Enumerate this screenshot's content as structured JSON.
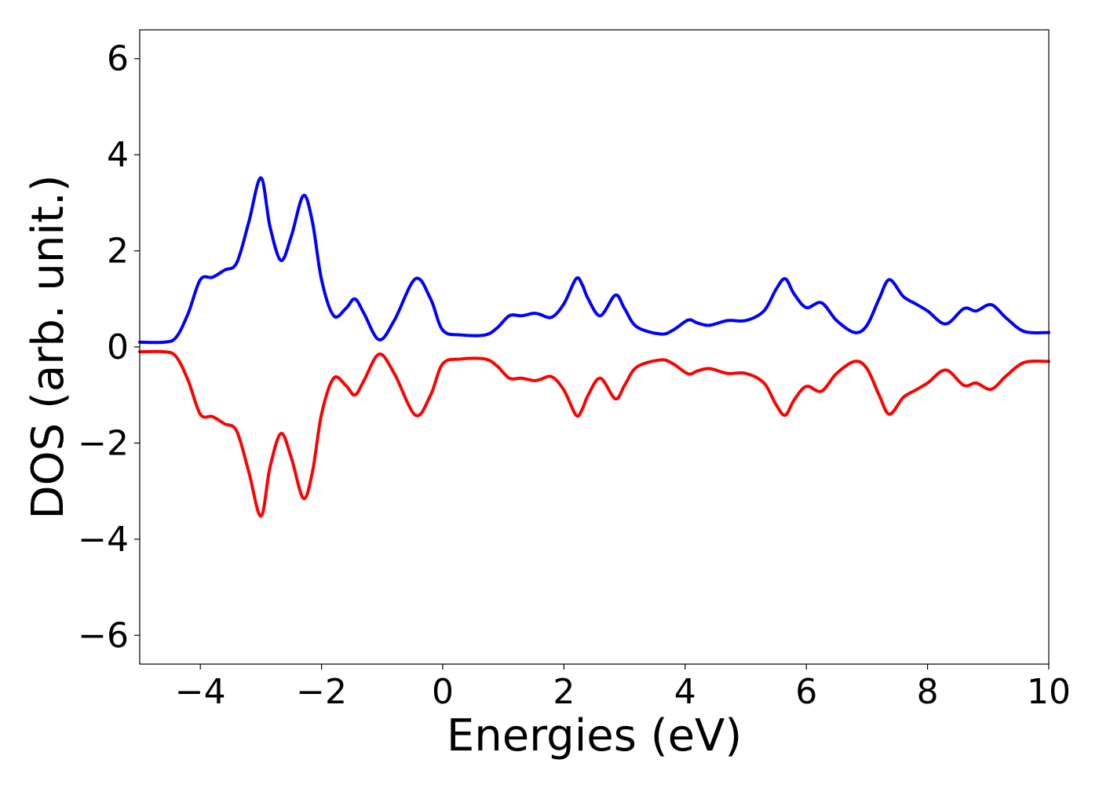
{
  "chart_data": {
    "type": "line",
    "title": "",
    "xlabel": "Energies (eV)",
    "ylabel": "DOS (arb. unit.)",
    "xlim": [
      -5,
      10
    ],
    "ylim": [
      -6.6,
      6.6
    ],
    "xticks": [
      -4,
      -2,
      0,
      2,
      4,
      6,
      8,
      10
    ],
    "yticks": [
      -6,
      -4,
      -2,
      0,
      2,
      4,
      6
    ],
    "xtick_labels": [
      "−4",
      "−2",
      "0",
      "2",
      "4",
      "6",
      "8",
      "10"
    ],
    "ytick_labels": [
      "−6",
      "−4",
      "−2",
      "0",
      "2",
      "4",
      "6"
    ],
    "grid": false,
    "legend": false,
    "series": [
      {
        "color": "#0000ff",
        "x": [
          -5.0,
          -4.6,
          -4.4,
          -4.2,
          -4.0,
          -3.8,
          -3.6,
          -3.4,
          -3.2,
          -3.0,
          -2.85,
          -2.67,
          -2.5,
          -2.3,
          -2.15,
          -2.0,
          -1.8,
          -1.6,
          -1.45,
          -1.3,
          -1.05,
          -0.8,
          -0.45,
          -0.2,
          0.0,
          0.3,
          0.7,
          0.9,
          1.1,
          1.3,
          1.5,
          1.6,
          1.8,
          2.0,
          2.2,
          2.3,
          2.4,
          2.6,
          2.85,
          3.0,
          3.2,
          3.6,
          3.8,
          4.05,
          4.2,
          4.4,
          4.7,
          5.0,
          5.3,
          5.5,
          5.65,
          5.8,
          6.0,
          6.25,
          6.5,
          6.8,
          7.0,
          7.2,
          7.37,
          7.6,
          7.8,
          8.0,
          8.3,
          8.6,
          8.8,
          9.05,
          9.3,
          9.6,
          10.0
        ],
        "values": [
          0.1,
          0.1,
          0.2,
          0.7,
          1.4,
          1.45,
          1.6,
          1.75,
          2.6,
          3.52,
          2.5,
          1.8,
          2.3,
          3.15,
          2.6,
          1.4,
          0.65,
          0.8,
          1.0,
          0.7,
          0.15,
          0.55,
          1.42,
          1.0,
          0.35,
          0.25,
          0.25,
          0.4,
          0.65,
          0.65,
          0.7,
          0.68,
          0.62,
          0.9,
          1.42,
          1.3,
          1.0,
          0.65,
          1.08,
          0.8,
          0.42,
          0.27,
          0.35,
          0.56,
          0.5,
          0.45,
          0.55,
          0.55,
          0.75,
          1.2,
          1.42,
          1.1,
          0.82,
          0.92,
          0.55,
          0.3,
          0.45,
          1.0,
          1.4,
          1.05,
          0.9,
          0.75,
          0.48,
          0.8,
          0.75,
          0.88,
          0.6,
          0.32,
          0.3
        ]
      },
      {
        "color": "#ff0000",
        "x": [
          -5.0,
          -4.6,
          -4.4,
          -4.2,
          -4.0,
          -3.8,
          -3.6,
          -3.4,
          -3.2,
          -3.0,
          -2.85,
          -2.67,
          -2.5,
          -2.3,
          -2.15,
          -2.0,
          -1.8,
          -1.6,
          -1.45,
          -1.3,
          -1.05,
          -0.8,
          -0.45,
          -0.2,
          0.0,
          0.3,
          0.7,
          0.9,
          1.1,
          1.3,
          1.5,
          1.6,
          1.8,
          2.0,
          2.2,
          2.3,
          2.4,
          2.6,
          2.85,
          3.0,
          3.2,
          3.6,
          3.8,
          4.05,
          4.2,
          4.4,
          4.7,
          5.0,
          5.3,
          5.5,
          5.65,
          5.8,
          6.0,
          6.25,
          6.5,
          6.8,
          7.0,
          7.2,
          7.37,
          7.6,
          7.8,
          8.0,
          8.3,
          8.6,
          8.8,
          9.05,
          9.3,
          9.6,
          10.0
        ],
        "values": [
          -0.1,
          -0.1,
          -0.2,
          -0.7,
          -1.4,
          -1.45,
          -1.6,
          -1.75,
          -2.6,
          -3.52,
          -2.5,
          -1.8,
          -2.3,
          -3.15,
          -2.6,
          -1.4,
          -0.65,
          -0.8,
          -1.0,
          -0.7,
          -0.15,
          -0.55,
          -1.42,
          -1.0,
          -0.35,
          -0.25,
          -0.25,
          -0.4,
          -0.65,
          -0.65,
          -0.7,
          -0.68,
          -0.62,
          -0.9,
          -1.42,
          -1.3,
          -1.0,
          -0.65,
          -1.08,
          -0.8,
          -0.42,
          -0.27,
          -0.35,
          -0.56,
          -0.5,
          -0.45,
          -0.55,
          -0.55,
          -0.75,
          -1.2,
          -1.42,
          -1.1,
          -0.82,
          -0.92,
          -0.55,
          -0.3,
          -0.45,
          -1.0,
          -1.4,
          -1.05,
          -0.9,
          -0.75,
          -0.48,
          -0.8,
          -0.75,
          -0.88,
          -0.6,
          -0.32,
          -0.3
        ]
      }
    ]
  }
}
